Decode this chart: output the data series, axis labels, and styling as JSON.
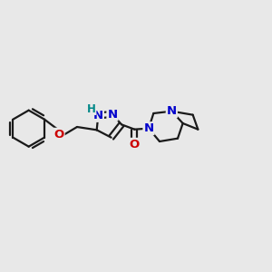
{
  "background_color": "#e8e8e8",
  "bond_color": "#1a1a1a",
  "nitrogen_color": "#0000cc",
  "oxygen_color": "#cc0000",
  "hydrogen_color": "#008888",
  "bond_width": 1.6,
  "font_size_atom": 9.5,
  "font_size_h": 8.5,
  "xlim": [
    -3.5,
    5.5
  ],
  "ylim": [
    -2.5,
    2.5
  ]
}
